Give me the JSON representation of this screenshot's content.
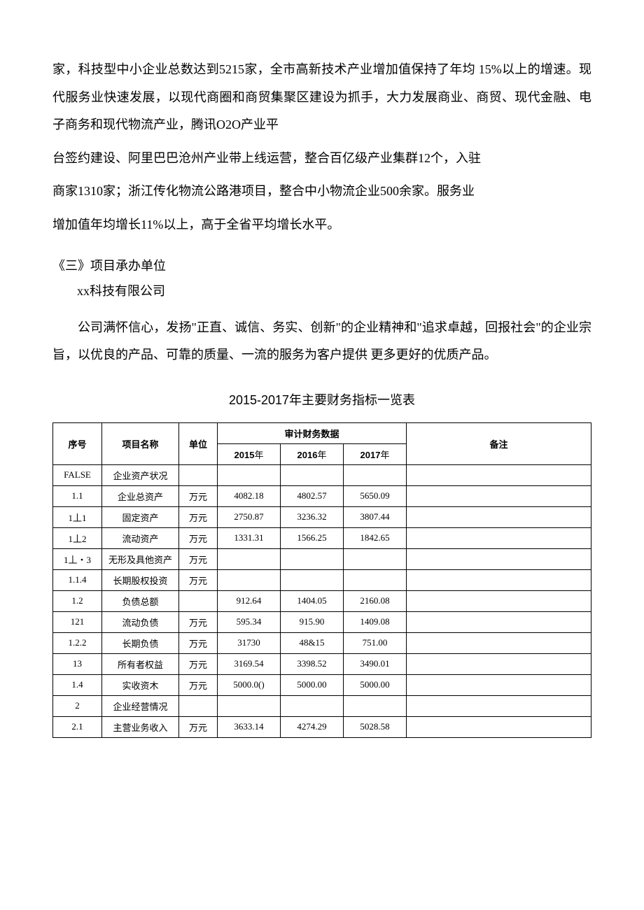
{
  "paragraphs": {
    "p1": "家，科技型中小企业总数达到5215家，全市高新技术产业增加值保持了年均 15%以上的增速。现代服务业快速发展，以现代商圈和商贸集聚区建设为抓手，大力发展商业、商贸、现代金融、电子商务和现代物流产业，腾讯O2O产业平",
    "p2": "台签约建设、阿里巴巴沧州产业带上线运营，整合百亿级产业集群12个，入驻",
    "p3": "商家1310家；浙江传化物流公路港项目，整合中小物流企业500余家。服务业",
    "p4": "增加值年均增长11%以上，高于全省平均增长水平。"
  },
  "section": {
    "heading": "《三》项目承办单位",
    "company": "xx科技有限公司",
    "description": "公司满怀信心，发扬\"正直、诚信、务实、创新\"的企业精神和\"追求卓越，回报社会\"的企业宗旨，以优良的产品、可靠的质量、一流的服务为客户提供 更多更好的优质产品。"
  },
  "table": {
    "title": "2015-2017年主要财务指标一览表",
    "headers": {
      "seq": "序号",
      "name": "项目名称",
      "unit": "单位",
      "audit": "审计财务数据",
      "remark": "备注",
      "y2015_num": "2015",
      "y2015_txt": "年",
      "y2016_num": "2016",
      "y2016_txt": "年",
      "y2017_num": "2017",
      "y2017_txt": "年"
    },
    "rows": [
      {
        "seq": "FALSE",
        "name": "企业资产状况",
        "unit": "",
        "y2015": "",
        "y2016": "",
        "y2017": "",
        "remark": ""
      },
      {
        "seq": "1.1",
        "name": "企业总资产",
        "unit": "万元",
        "y2015": "4082.18",
        "y2016": "4802.57",
        "y2017": "5650.09",
        "remark": ""
      },
      {
        "seq": "1丄1",
        "name": "固定资产",
        "unit": "万元",
        "y2015": "2750.87",
        "y2016": "3236.32",
        "y2017": "3807.44",
        "remark": ""
      },
      {
        "seq": "1丄2",
        "name": "流动资产",
        "unit": "万元",
        "y2015": "1331.31",
        "y2016": "1566.25",
        "y2017": "1842.65",
        "remark": ""
      },
      {
        "seq": "1丄・3",
        "name": "无形及具他资产",
        "unit": "万元",
        "y2015": "",
        "y2016": "",
        "y2017": "",
        "remark": ""
      },
      {
        "seq": "1.1.4",
        "name": "长期股权投资",
        "unit": "万元",
        "y2015": "",
        "y2016": "",
        "y2017": "",
        "remark": ""
      },
      {
        "seq": "1.2",
        "name": "负债总额",
        "unit": "",
        "y2015": "912.64",
        "y2016": "1404.05",
        "y2017": "2160.08",
        "remark": ""
      },
      {
        "seq": "121",
        "name": "流动负债",
        "unit": "万元",
        "y2015": "595.34",
        "y2016": "915.90",
        "y2017": "1409.08",
        "remark": ""
      },
      {
        "seq": "1.2.2",
        "name": "长期负债",
        "unit": "万元",
        "y2015": "31730",
        "y2016": "48&15",
        "y2017": "751.00",
        "remark": ""
      },
      {
        "seq": "13",
        "name": "所有者权益",
        "unit": "万元",
        "y2015": "3169.54",
        "y2016": "3398.52",
        "y2017": "3490.01",
        "remark": ""
      },
      {
        "seq": "1.4",
        "name": "实收资木",
        "unit": "万元",
        "y2015": "5000.0()",
        "y2016": "5000.00",
        "y2017": "5000.00",
        "remark": ""
      },
      {
        "seq": "2",
        "name": "企业经营情况",
        "unit": "",
        "y2015": "",
        "y2016": "",
        "y2017": "",
        "remark": ""
      },
      {
        "seq": "2.1",
        "name": "主营业务收入",
        "unit": "万元",
        "y2015": "3633.14",
        "y2016": "4274.29",
        "y2017": "5028.58",
        "remark": ""
      }
    ]
  },
  "colors": {
    "text": "#000000",
    "border": "#000000",
    "background": "#ffffff"
  }
}
